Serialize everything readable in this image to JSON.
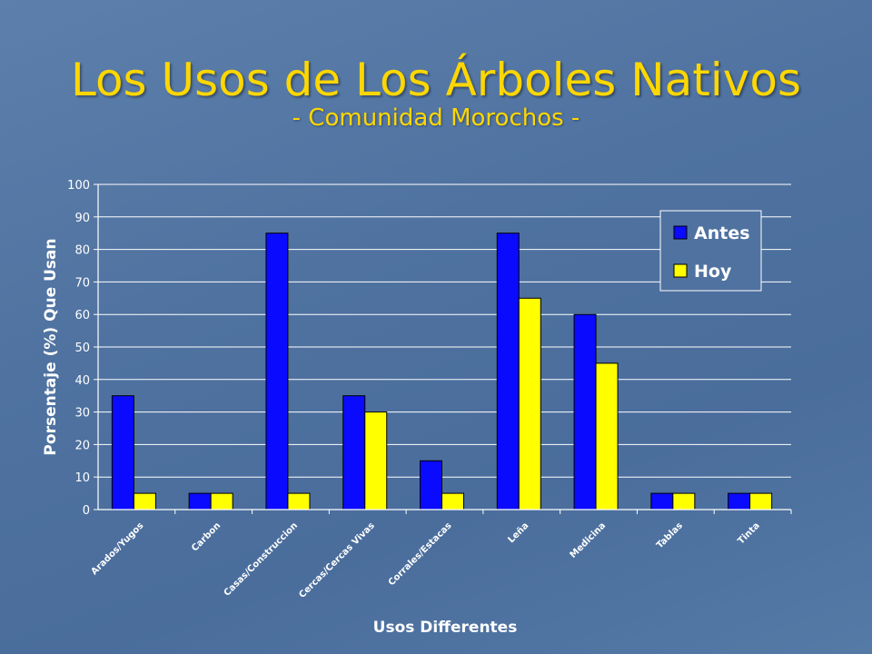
{
  "slide": {
    "title": "Los Usos de Los Árboles Nativos",
    "subtitle": "- Comunidad Morochos -"
  },
  "colors": {
    "antes": "#0a0aff",
    "hoy": "#ffff00",
    "title": "#ffd700",
    "background": "#4f72a0"
  },
  "chart_data": {
    "type": "bar",
    "title": "",
    "xlabel": "Usos Differentes",
    "ylabel": "Porsentaje (%) Que Usan",
    "ylim": [
      0,
      100
    ],
    "yticks": [
      0,
      10,
      20,
      30,
      40,
      50,
      60,
      70,
      80,
      90,
      100
    ],
    "grid": true,
    "legend_position": "top-right",
    "categories": [
      "Arados/Yugos",
      "Carbon",
      "Casas/Construccion",
      "Cercas/Cercas Vivas",
      "Corrales/Estacas",
      "Leña",
      "Medicina",
      "Tablas",
      "Tinta"
    ],
    "series": [
      {
        "name": "Antes",
        "color": "#0a0aff",
        "values": [
          35,
          5,
          85,
          35,
          15,
          85,
          60,
          5,
          5
        ]
      },
      {
        "name": "Hoy",
        "color": "#ffff00",
        "values": [
          5,
          5,
          5,
          30,
          5,
          65,
          45,
          5,
          5
        ]
      }
    ]
  }
}
